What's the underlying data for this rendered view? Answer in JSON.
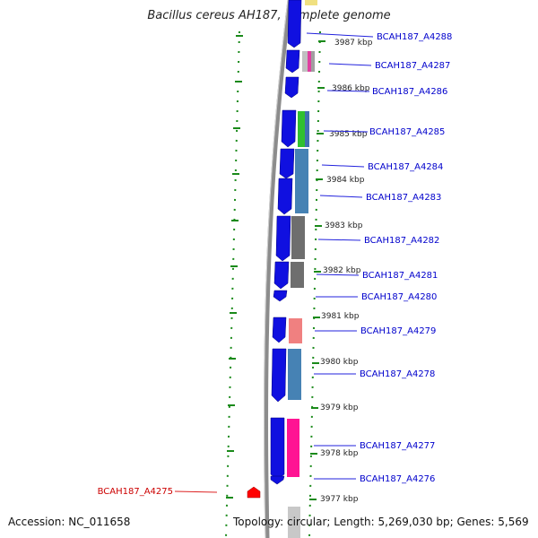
{
  "title": "Bacillus cereus AH187, complete genome",
  "accession": "Accession: NC_011658",
  "topology": "Topology: circular; Length: 5,269,030 bp; Genes: 5,569",
  "kbp_labels": [
    {
      "text": "3987 kbp"
    },
    {
      "text": "3986 kbp"
    },
    {
      "text": "3985 kbp"
    },
    {
      "text": "3984 kbp"
    },
    {
      "text": "3983 kbp"
    },
    {
      "text": "3982 kbp"
    },
    {
      "text": "3981 kbp"
    },
    {
      "text": "3980 kbp"
    },
    {
      "text": "3979 kbp"
    },
    {
      "text": "3978 kbp"
    },
    {
      "text": "3977 kbp"
    }
  ],
  "genes": [
    {
      "name": "BCAH187_A4288",
      "color": "#0000cc"
    },
    {
      "name": "BCAH187_A4287",
      "color": "#0000cc"
    },
    {
      "name": "BCAH187_A4286",
      "color": "#0000cc"
    },
    {
      "name": "BCAH187_A4285",
      "color": "#0000cc"
    },
    {
      "name": "BCAH187_A4284",
      "color": "#0000cc"
    },
    {
      "name": "BCAH187_A4283",
      "color": "#0000cc"
    },
    {
      "name": "BCAH187_A4282",
      "color": "#0000cc"
    },
    {
      "name": "BCAH187_A4281",
      "color": "#0000cc"
    },
    {
      "name": "BCAH187_A4280",
      "color": "#0000cc"
    },
    {
      "name": "BCAH187_A4279",
      "color": "#0000cc"
    },
    {
      "name": "BCAH187_A4278",
      "color": "#0000cc"
    },
    {
      "name": "BCAH187_A4277",
      "color": "#0000cc"
    },
    {
      "name": "BCAH187_A4276",
      "color": "#0000cc"
    },
    {
      "name": "BCAH187_A4275",
      "color": "#cc0000"
    }
  ],
  "colors": {
    "backbone": "#8c8c8c",
    "cds": "#1010e0",
    "tick": "#1a8a1a"
  }
}
